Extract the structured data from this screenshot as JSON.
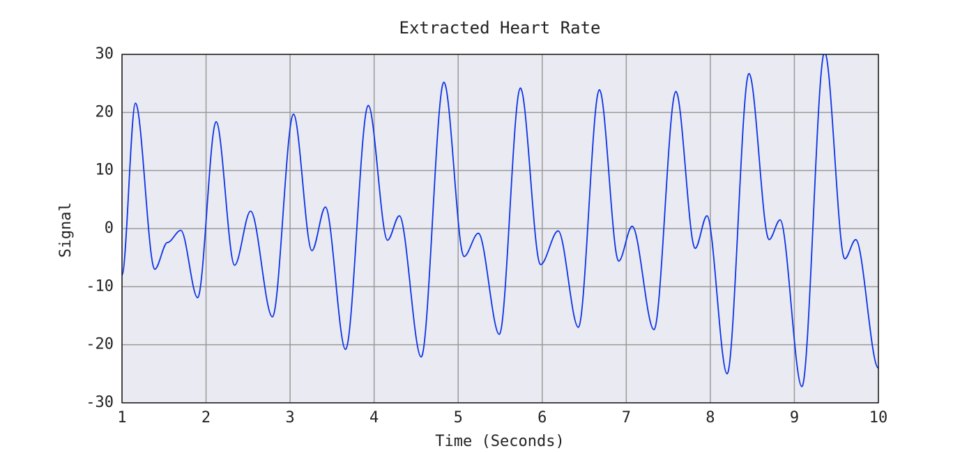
{
  "chart_data": {
    "type": "line",
    "title": "Extracted Heart Rate",
    "xlabel": "Time (Seconds)",
    "ylabel": "Signal",
    "x": [
      1.0,
      1.16,
      1.39,
      1.54,
      1.7,
      1.9,
      2.12,
      2.34,
      2.53,
      2.79,
      3.04,
      3.26,
      3.42,
      3.66,
      3.93,
      4.16,
      4.3,
      4.56,
      4.83,
      5.07,
      5.24,
      5.49,
      5.74,
      5.98,
      6.19,
      6.43,
      6.68,
      6.91,
      7.07,
      7.33,
      7.59,
      7.82,
      7.96,
      8.2,
      8.46,
      8.7,
      8.83,
      9.09,
      9.36,
      9.6,
      9.73,
      10.0
    ],
    "values": [
      -8,
      21.6,
      -7,
      -2.4,
      -0.3,
      -11.9,
      18.4,
      -6.3,
      3.0,
      -15.2,
      19.7,
      -3.8,
      3.7,
      -20.8,
      21.2,
      -2.0,
      2.2,
      -22.1,
      25.2,
      -4.8,
      -0.8,
      -18.2,
      24.2,
      -6.2,
      -0.4,
      -17.0,
      23.9,
      -5.6,
      0.4,
      -17.4,
      23.6,
      -3.4,
      2.2,
      -25.0,
      26.7,
      -1.9,
      1.5,
      -27.2,
      30.4,
      -5.2,
      -1.9,
      -24
    ],
    "color": "#0a32e6",
    "xlim": [
      1,
      10
    ],
    "ylim": [
      -30,
      30
    ],
    "xticks": [
      1,
      2,
      3,
      4,
      5,
      6,
      7,
      8,
      9,
      10
    ],
    "yticks": [
      -30,
      -20,
      -10,
      0,
      10,
      20,
      30
    ],
    "grid": true
  }
}
